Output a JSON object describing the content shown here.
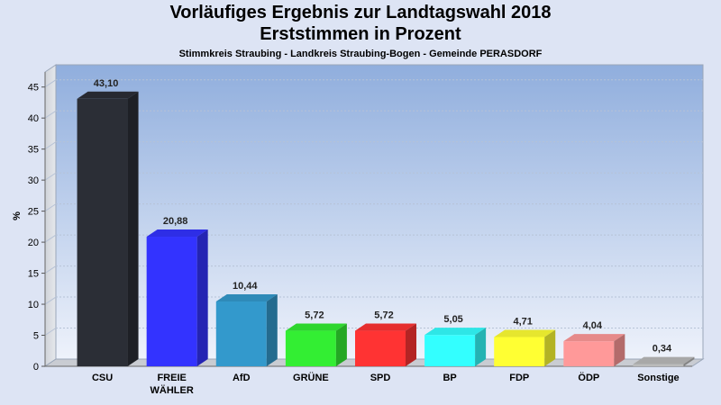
{
  "header": {
    "title_line1": "Vorläufiges Ergebnis zur Landtagswahl 2018",
    "title_line2": "Erststimmen in Prozent",
    "subtitle": "Stimmkreis Straubing - Landkreis Straubing-Bogen - Gemeinde PERASDORF"
  },
  "chart_data": {
    "type": "bar",
    "title": "Vorläufiges Ergebnis zur Landtagswahl 2018 Erststimmen in Prozent",
    "subtitle": "Stimmkreis Straubing - Landkreis Straubing-Bogen - Gemeinde PERASDORF",
    "xlabel": "",
    "ylabel": "%",
    "ylim": [
      0,
      48
    ],
    "yticks": [
      0,
      5,
      10,
      15,
      20,
      25,
      30,
      35,
      40,
      45
    ],
    "grid": true,
    "categories": [
      [
        "CSU"
      ],
      [
        "FREIE",
        "WÄHLER"
      ],
      [
        "AfD"
      ],
      [
        "GRÜNE"
      ],
      [
        "SPD"
      ],
      [
        "BP"
      ],
      [
        "FDP"
      ],
      [
        "ÖDP"
      ],
      [
        "Sonstige"
      ]
    ],
    "values": [
      43.1,
      20.88,
      10.44,
      5.72,
      5.72,
      5.05,
      4.71,
      4.04,
      0.34
    ],
    "value_labels": [
      "43,10",
      "20,88",
      "10,44",
      "5,72",
      "5,72",
      "5,05",
      "4,71",
      "4,04",
      "0,34"
    ],
    "colors": [
      "#2b2e36",
      "#3333ff",
      "#3399cc",
      "#33ee33",
      "#ff3333",
      "#33ffff",
      "#ffff33",
      "#ff9999",
      "#bbbbbb"
    ]
  }
}
